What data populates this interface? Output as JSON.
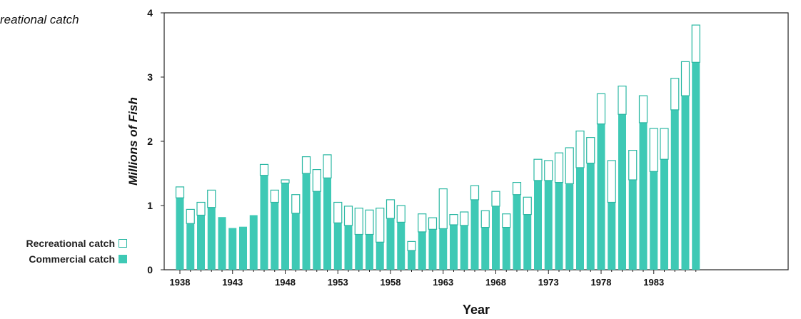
{
  "page": {
    "title_fragment": "reational catch"
  },
  "colors": {
    "commercial": "#3ec9b5",
    "recreational_fill": "#ffffff",
    "recreational_stroke": "#2bb8a3",
    "axis": "#222222"
  },
  "chart_data": {
    "type": "bar",
    "stacked": true,
    "title": "",
    "xlabel": "Year",
    "ylabel": "Millions of Fish",
    "ylim": [
      0,
      4
    ],
    "yticks": [
      "0",
      "1",
      "2",
      "3",
      "4"
    ],
    "grid": false,
    "legend_position": "left",
    "categories": [
      1938,
      1939,
      1940,
      1941,
      1942,
      1943,
      1944,
      1945,
      1946,
      1947,
      1948,
      1949,
      1950,
      1951,
      1952,
      1953,
      1954,
      1955,
      1956,
      1957,
      1958,
      1959,
      1960,
      1961,
      1962,
      1963,
      1964,
      1965,
      1966,
      1967,
      1968,
      1969,
      1970,
      1971,
      1972,
      1973,
      1974,
      1975,
      1976,
      1977,
      1978,
      1979,
      1980,
      1981,
      1982,
      1983,
      1984,
      1985,
      1986,
      1987
    ],
    "xtick_labels": [
      "1938",
      "1943",
      "1948",
      "1953",
      "1958",
      "1963",
      "1968",
      "1973",
      "1978",
      "1983"
    ],
    "series": [
      {
        "name": "Commercial catch",
        "values": [
          1.12,
          0.72,
          0.85,
          0.97,
          0.82,
          0.65,
          0.67,
          0.85,
          1.47,
          1.05,
          1.35,
          0.88,
          1.5,
          1.22,
          1.43,
          0.73,
          0.69,
          0.55,
          0.55,
          0.43,
          0.8,
          0.74,
          0.3,
          0.59,
          0.63,
          0.64,
          0.7,
          0.69,
          1.09,
          0.66,
          0.99,
          0.66,
          1.17,
          0.86,
          1.39,
          1.39,
          1.36,
          1.34,
          1.59,
          1.66,
          2.27,
          1.05,
          2.42,
          1.4,
          2.29,
          1.53,
          1.72,
          2.49,
          2.71,
          3.23
        ]
      },
      {
        "name": "Recreational catch",
        "values": [
          0.17,
          0.22,
          0.2,
          0.27,
          0.0,
          0.0,
          0.0,
          0.0,
          0.17,
          0.19,
          0.05,
          0.29,
          0.26,
          0.34,
          0.36,
          0.32,
          0.3,
          0.41,
          0.38,
          0.53,
          0.29,
          0.26,
          0.14,
          0.28,
          0.18,
          0.62,
          0.16,
          0.21,
          0.22,
          0.26,
          0.23,
          0.21,
          0.19,
          0.27,
          0.33,
          0.31,
          0.46,
          0.56,
          0.57,
          0.4,
          0.47,
          0.65,
          0.44,
          0.46,
          0.42,
          0.67,
          0.48,
          0.49,
          0.53,
          0.58
        ]
      }
    ]
  }
}
